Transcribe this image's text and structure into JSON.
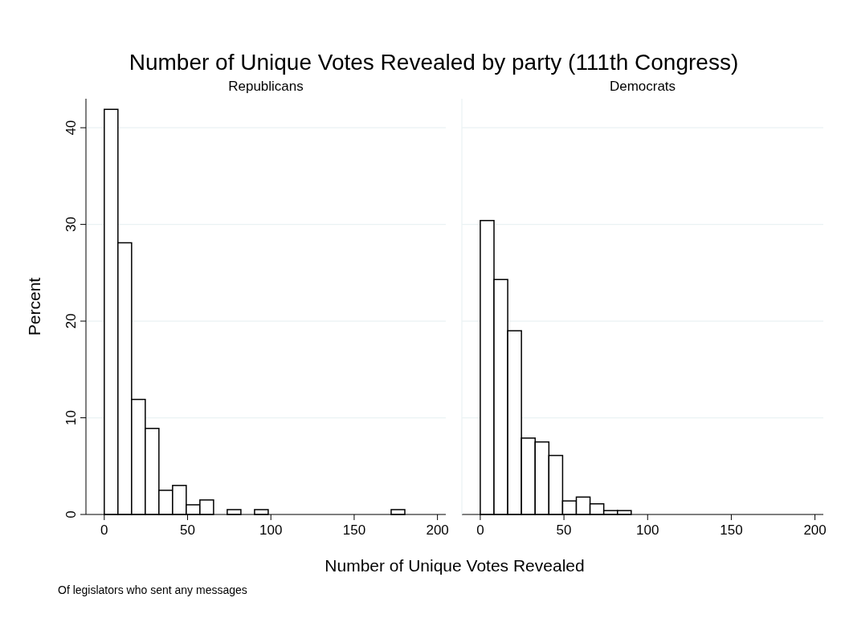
{
  "chart_data": [
    {
      "type": "histogram",
      "title": "Number of Unique Votes Revealed by party (111th Congress)",
      "subtitle": "Republicans",
      "xlabel": "Number of Unique Votes Revealed",
      "ylabel": "Percent",
      "annotations": [
        "Of legislators who sent any messages"
      ],
      "color": "#ffffff",
      "bins": [
        0,
        8.2,
        16.4,
        24.6,
        32.8,
        41,
        49.2,
        57.4,
        65.6,
        73.8,
        82,
        90.2,
        98.4,
        106.6,
        114.8,
        123,
        131.2,
        139.4,
        147.6,
        155.8,
        164,
        172.2,
        180.4
      ],
      "values": [
        41.9,
        28.1,
        11.9,
        8.9,
        2.5,
        3.0,
        1.0,
        1.5,
        0,
        0.5,
        0,
        0.5,
        0,
        0,
        0,
        0,
        0,
        0,
        0,
        0,
        0,
        0.5
      ],
      "xlim": [
        -11,
        205
      ],
      "xticks": [
        0,
        50,
        100,
        150,
        200
      ],
      "ylim": [
        0,
        43
      ],
      "yticks": [
        0,
        10,
        20,
        30,
        40
      ],
      "grid": "y"
    },
    {
      "type": "histogram",
      "subtitle": "Democrats",
      "color": "#ffffff",
      "bins": [
        0,
        8.2,
        16.4,
        24.6,
        32.8,
        41,
        49.2,
        57.4,
        65.6,
        73.8,
        82,
        90.2
      ],
      "values": [
        30.4,
        24.3,
        19.0,
        7.9,
        7.5,
        6.1,
        1.4,
        1.8,
        1.1,
        0.4,
        0.4
      ],
      "xlim": [
        -11,
        205
      ],
      "xticks": [
        0,
        50,
        100,
        150,
        200
      ],
      "ylim": [
        0,
        43
      ],
      "yticks": [
        0,
        10,
        20,
        30,
        40
      ],
      "grid": "y",
      "tick_labels": "x"
    }
  ]
}
